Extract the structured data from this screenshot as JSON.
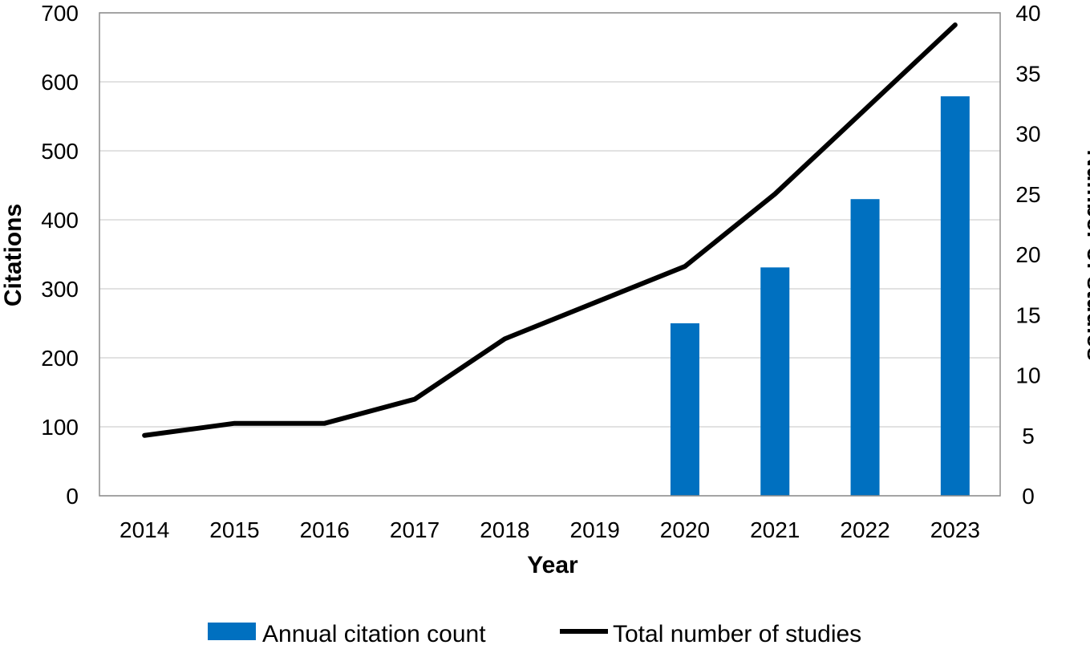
{
  "chart_data": {
    "type": "bar",
    "categories": [
      "2014",
      "2015",
      "2016",
      "2017",
      "2018",
      "2019",
      "2020",
      "2021",
      "2022",
      "2023"
    ],
    "xlabel": "Year",
    "ylabel": "Citations",
    "y2label": "Number of studies",
    "ylim": [
      0,
      700
    ],
    "y2lim": [
      0,
      40
    ],
    "yticks": [
      "0",
      "100",
      "200",
      "300",
      "400",
      "500",
      "600",
      "700"
    ],
    "y2ticks": [
      "0",
      "5",
      "10",
      "15",
      "20",
      "25",
      "30",
      "35",
      "40"
    ],
    "grid": true,
    "legend_position": "bottom",
    "series": [
      {
        "name": "Annual citation count",
        "type": "bar",
        "axis": "left",
        "color": "#0070C0",
        "values": [
          null,
          null,
          null,
          null,
          null,
          null,
          250,
          331,
          430,
          579
        ]
      },
      {
        "name": "Total number of studies",
        "type": "line",
        "axis": "right",
        "color": "#000000",
        "values": [
          5,
          6,
          6,
          8,
          13,
          16,
          19,
          25,
          32,
          39
        ]
      }
    ]
  }
}
